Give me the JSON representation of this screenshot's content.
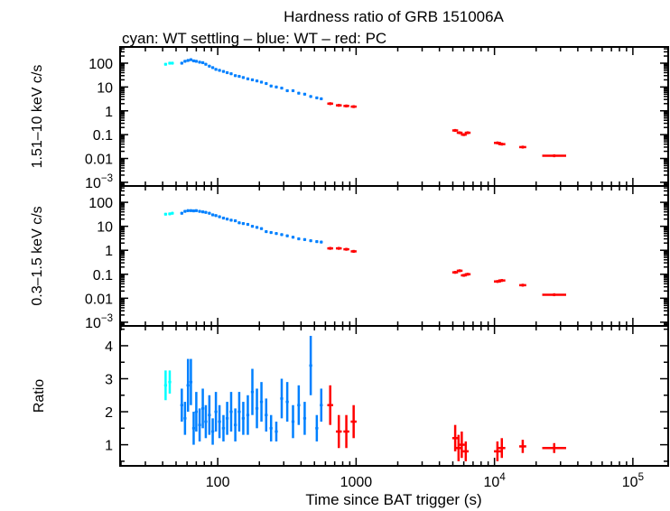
{
  "chart_data": {
    "type": "scatter",
    "title": "Hardness ratio of GRB 151006A",
    "subtitle": "cyan: WT settling – blue: WT – red: PC",
    "xlabel": "Time since BAT trigger (s)",
    "xscale": "log",
    "xlim": [
      19.7,
      180000
    ],
    "x_ticks": [
      {
        "b": "100",
        "e": ""
      },
      {
        "b": "1000",
        "e": ""
      },
      {
        "b": "10",
        "e": "4"
      },
      {
        "b": "10",
        "e": "5"
      }
    ],
    "colors": {
      "wt_settling": "#00ffff",
      "wt": "#0080ff",
      "pc": "#ff0000"
    },
    "panels": [
      {
        "ylabel": "1.51–10 keV c/s",
        "yscale": "log",
        "ylim": [
          0.0007,
          480
        ],
        "y_ticks": [
          {
            "v": 100,
            "b": "100",
            "e": ""
          },
          {
            "v": 10,
            "b": "10",
            "e": ""
          },
          {
            "v": 1,
            "b": "1",
            "e": ""
          },
          {
            "v": 0.1,
            "b": "0.1",
            "e": ""
          },
          {
            "v": 0.01,
            "b": "0.01",
            "e": ""
          },
          {
            "v": 0.001,
            "b": "10",
            "e": "−3"
          }
        ],
        "series": [
          {
            "name": "WT settling",
            "color": "cyan",
            "t": [
              42,
              45,
              47
            ],
            "y": [
              90,
              100,
              100
            ]
          },
          {
            "name": "WT",
            "color": "blue",
            "t": [
              55,
              58,
              61,
              64,
              67,
              70,
              74,
              78,
              82,
              87,
              92,
              97,
              103,
              110,
              117,
              125,
              134,
              143,
              153,
              165,
              178,
              192,
              207,
              224,
              243,
              265,
              290,
              318,
              350,
              385,
              425,
              470,
              520,
              560
            ],
            "y": [
              100,
              120,
              130,
              140,
              125,
              120,
              110,
              105,
              90,
              75,
              65,
              55,
              50,
              45,
              40,
              36,
              30,
              28,
              25,
              22,
              20,
              18,
              16,
              14,
              11,
              10,
              9,
              7,
              7,
              5.5,
              5,
              4,
              3.5,
              3.2
            ]
          },
          {
            "name": "PC",
            "color": "red",
            "t": [
              650,
              750,
              850,
              960,
              5200,
              5600,
              6000,
              6400,
              10500,
              11300,
              16000,
              27000
            ],
            "y": [
              2.0,
              1.7,
              1.6,
              1.5,
              0.15,
              0.12,
              0.1,
              0.12,
              0.045,
              0.04,
              0.03,
              0.013
            ]
          }
        ]
      },
      {
        "ylabel": "0.3–1.5 keV c/s",
        "yscale": "log",
        "ylim": [
          0.0007,
          480
        ],
        "y_ticks": [
          {
            "v": 100,
            "b": "100",
            "e": ""
          },
          {
            "v": 10,
            "b": "10",
            "e": ""
          },
          {
            "v": 1,
            "b": "1",
            "e": ""
          },
          {
            "v": 0.1,
            "b": "0.1",
            "e": ""
          },
          {
            "v": 0.01,
            "b": "0.01",
            "e": ""
          },
          {
            "v": 0.001,
            "b": "10",
            "e": "−3"
          }
        ],
        "series": [
          {
            "name": "WT settling",
            "color": "cyan",
            "t": [
              42,
              45,
              47
            ],
            "y": [
              32,
              33,
              35
            ]
          },
          {
            "name": "WT",
            "color": "blue",
            "t": [
              55,
              58,
              61,
              64,
              67,
              70,
              74,
              78,
              82,
              87,
              92,
              97,
              103,
              110,
              117,
              125,
              134,
              143,
              153,
              165,
              178,
              192,
              207,
              224,
              243,
              265,
              290,
              318,
              350,
              385,
              425,
              470,
              520,
              560
            ],
            "y": [
              35,
              42,
              45,
              45,
              44,
              45,
              42,
              40,
              38,
              35,
              30,
              28,
              25,
              22,
              20,
              18,
              17,
              14,
              13,
              12,
              10,
              9,
              8,
              6,
              5.5,
              5,
              4.5,
              4,
              3.5,
              3,
              2.8,
              2.5,
              2.3,
              2.2
            ]
          },
          {
            "name": "PC",
            "color": "red",
            "t": [
              650,
              750,
              850,
              960,
              5200,
              5600,
              6000,
              6400,
              10500,
              11300,
              16000,
              27000
            ],
            "y": [
              1.2,
              1.2,
              1.1,
              0.9,
              0.12,
              0.14,
              0.09,
              0.1,
              0.05,
              0.055,
              0.035,
              0.014
            ]
          }
        ]
      },
      {
        "ylabel": "Ratio",
        "yscale": "linear",
        "ylim": [
          0.36,
          4.6
        ],
        "y_ticks": [
          {
            "v": 1,
            "b": "1",
            "e": ""
          },
          {
            "v": 2,
            "b": "2",
            "e": ""
          },
          {
            "v": 3,
            "b": "3",
            "e": ""
          },
          {
            "v": 4,
            "b": "4",
            "e": ""
          }
        ],
        "series": [
          {
            "name": "WT settling",
            "color": "cyan",
            "t": [
              42,
              45
            ],
            "y": [
              2.8,
              2.9
            ],
            "err": [
              0.45,
              0.35
            ]
          },
          {
            "name": "WT",
            "color": "blue",
            "t": [
              55,
              58,
              61,
              64,
              67,
              70,
              74,
              78,
              82,
              87,
              92,
              97,
              103,
              110,
              117,
              125,
              134,
              143,
              153,
              165,
              178,
              192,
              207,
              224,
              243,
              265,
              290,
              318,
              350,
              385,
              425,
              470,
              520,
              560
            ],
            "y": [
              2.2,
              1.8,
              2.8,
              2.9,
              1.5,
              2.0,
              1.6,
              2.1,
              1.7,
              1.9,
              1.4,
              2.0,
              1.7,
              1.5,
              1.8,
              2.0,
              1.6,
              2.0,
              1.8,
              1.9,
              2.6,
              2.1,
              2.3,
              1.9,
              1.5,
              1.4,
              2.4,
              2.3,
              1.7,
              2.2,
              1.8,
              3.4,
              1.5,
              2.2
            ],
            "err": [
              0.5,
              0.5,
              0.8,
              0.7,
              0.5,
              0.6,
              0.5,
              0.6,
              0.5,
              0.6,
              0.4,
              0.6,
              0.5,
              0.4,
              0.5,
              0.6,
              0.5,
              0.6,
              0.5,
              0.6,
              0.7,
              0.6,
              0.6,
              0.5,
              0.4,
              0.3,
              0.6,
              0.6,
              0.5,
              0.6,
              0.5,
              0.9,
              0.4,
              0.5
            ]
          },
          {
            "name": "PC",
            "color": "red",
            "t": [
              650,
              750,
              850,
              960,
              5200,
              5500,
              5800,
              6200,
              10500,
              11300,
              16000,
              27000
            ],
            "y": [
              2.2,
              1.4,
              1.4,
              1.7,
              1.2,
              0.9,
              1.0,
              0.8,
              0.8,
              0.9,
              0.95,
              0.9
            ],
            "err": [
              0.6,
              0.5,
              0.5,
              0.5,
              0.4,
              0.4,
              0.4,
              0.3,
              0.3,
              0.3,
              0.2,
              0.15
            ]
          }
        ]
      }
    ]
  }
}
